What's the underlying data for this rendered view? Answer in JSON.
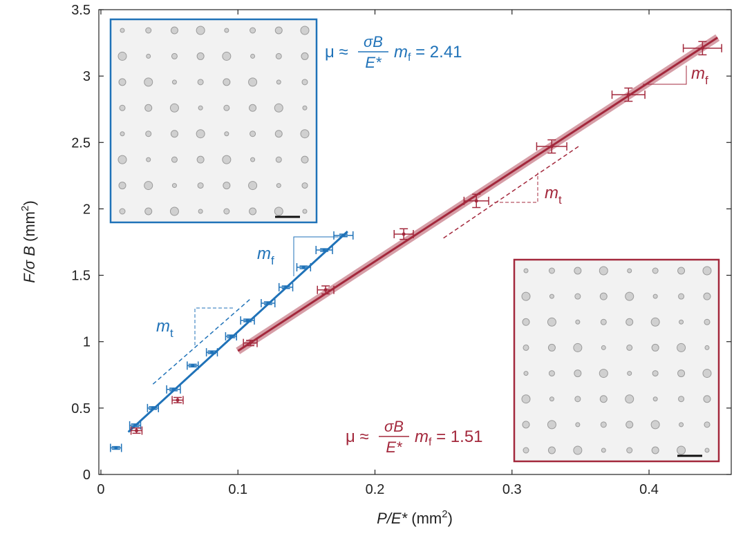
{
  "chart_data": {
    "type": "scatter",
    "x_label": {
      "p1": "P/E*",
      "p2": " (mm",
      "sup": "2",
      "p3": ")"
    },
    "y_label": {
      "p1": "F/σ B",
      "p2": " (mm",
      "sup": "2",
      "p3": ")"
    },
    "xlim": [
      -0.0015,
      0.46
    ],
    "ylim": [
      0,
      3.5
    ],
    "xticks": [
      0,
      0.1,
      0.2,
      0.3,
      0.4
    ],
    "yticks": [
      0,
      0.5,
      1,
      1.5,
      2,
      2.5,
      3,
      3.5
    ],
    "series": [
      {
        "color": "#1f72b8",
        "x": [
          0.011,
          0.025,
          0.038,
          0.053,
          0.067,
          0.081,
          0.095,
          0.107,
          0.122,
          0.135,
          0.148,
          0.163,
          0.177
        ],
        "y": [
          0.2,
          0.37,
          0.5,
          0.64,
          0.82,
          0.92,
          1.04,
          1.16,
          1.29,
          1.41,
          1.56,
          1.69,
          1.8
        ],
        "xerr": [
          0.004,
          0.004,
          0.004,
          0.005,
          0.004,
          0.004,
          0.004,
          0.005,
          0.005,
          0.005,
          0.005,
          0.006,
          0.007
        ],
        "yerr": [
          0.01,
          0.01,
          0.01,
          0.01,
          0.01,
          0.01,
          0.01,
          0.01,
          0.01,
          0.01,
          0.01,
          0.01,
          0.01
        ]
      },
      {
        "color": "#a3283c",
        "x": [
          0.026,
          0.056,
          0.109,
          0.164,
          0.221,
          0.274,
          0.329,
          0.385,
          0.439
        ],
        "y": [
          0.33,
          0.56,
          0.99,
          1.39,
          1.81,
          2.06,
          2.47,
          2.86,
          3.21
        ],
        "xerr": [
          0.004,
          0.004,
          0.005,
          0.006,
          0.007,
          0.009,
          0.011,
          0.012,
          0.014
        ],
        "yerr": [
          0.02,
          0.02,
          0.02,
          0.03,
          0.04,
          0.05,
          0.05,
          0.05,
          0.05
        ]
      }
    ],
    "fits": [
      {
        "color": "#1f72b8",
        "x": [
          0.02,
          0.18
        ],
        "y": [
          0.32,
          1.83
        ]
      },
      {
        "color": "#a3283c",
        "x": [
          0.1,
          0.45
        ],
        "y": [
          0.93,
          3.29
        ]
      }
    ],
    "guides": [
      {
        "color": "#1f72b8",
        "x": [
          0.038,
          0.11
        ],
        "y": [
          0.68,
          1.33
        ]
      },
      {
        "color": "#a3283c",
        "x": [
          0.25,
          0.35
        ],
        "y": [
          1.78,
          2.48
        ]
      }
    ],
    "annotations": [
      {
        "color": "#1f72b8",
        "mu": "μ ≈",
        "num": "σB",
        "den": "E*",
        "m": "m",
        "sub": "f",
        "rest": " = 2.41"
      },
      {
        "color": "#a3283c",
        "mu": "μ ≈",
        "num": "σB",
        "den": "E*",
        "m": "m",
        "sub": "f",
        "rest": " = 1.51"
      }
    ],
    "slope_labels": [
      {
        "color": "#1f72b8",
        "m": "m",
        "sub": "f"
      },
      {
        "color": "#1f72b8",
        "m": "m",
        "sub": "t"
      },
      {
        "color": "#a3283c",
        "m": "m",
        "sub": "t"
      },
      {
        "color": "#a3283c",
        "m": "m",
        "sub": "f"
      }
    ]
  }
}
